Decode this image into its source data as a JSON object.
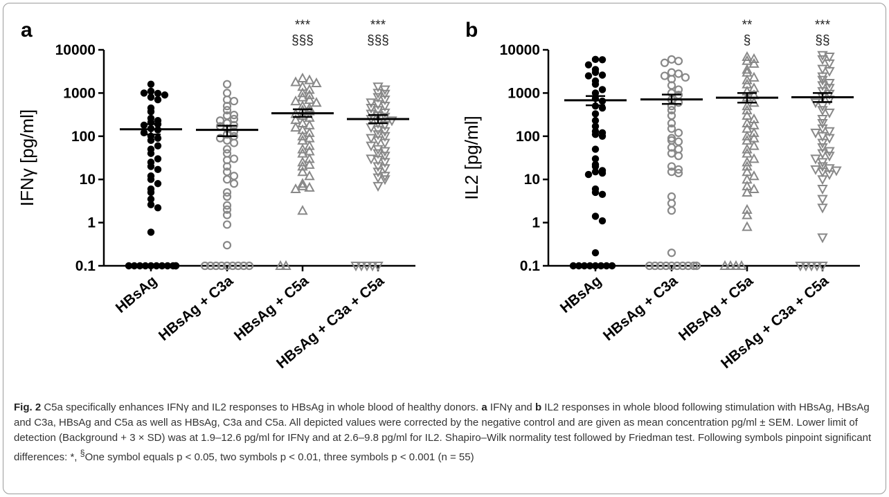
{
  "chart_data": [
    {
      "panel": "a",
      "type": "scatter",
      "ylabel": "IFNγ [pg/ml]",
      "yscale": "log",
      "ylim": [
        0.1,
        10000
      ],
      "yticks": [
        "10000",
        "1000",
        "100",
        "10",
        "1",
        "0.1"
      ],
      "categories": [
        "HBsAg",
        "HBsAg + C3a",
        "HBsAg + C5a",
        "HBsAg + C3a + C5a"
      ],
      "series": [
        {
          "marker": "filled-circle",
          "color": "#000000",
          "mean": 145,
          "sem": [
            110,
            190
          ],
          "values": [
            1600,
            1100,
            980,
            1000,
            900,
            800,
            700,
            450,
            370,
            260,
            230,
            210,
            190,
            180,
            150,
            140,
            120,
            100,
            90,
            80,
            60,
            50,
            40,
            30,
            25,
            20,
            17,
            12,
            10,
            8,
            6,
            5,
            3.5,
            2.6,
            2.2,
            0.6,
            0.1,
            0.1,
            0.1,
            0.1,
            0.1,
            0.1,
            0.1,
            0.1,
            0.1,
            0.1,
            0.1
          ]
        },
        {
          "marker": "open-circle",
          "color": "#888888",
          "mean": 140,
          "sem": [
            100,
            175
          ],
          "values": [
            1600,
            1000,
            700,
            650,
            500,
            400,
            310,
            300,
            250,
            230,
            200,
            180,
            170,
            150,
            130,
            110,
            100,
            90,
            80,
            70,
            50,
            40,
            30,
            28,
            20,
            15,
            12,
            10,
            8,
            5,
            4,
            2.5,
            2,
            1.5,
            0.9,
            0.3,
            0.1,
            0.1,
            0.1,
            0.1,
            0.1,
            0.1,
            0.1,
            0.1,
            0.1
          ]
        },
        {
          "marker": "open-triangle-up",
          "color": "#888888",
          "mean": 340,
          "sem": [
            280,
            420
          ],
          "values": [
            2200,
            2000,
            1800,
            1700,
            1400,
            1200,
            1000,
            900,
            800,
            700,
            650,
            600,
            500,
            450,
            400,
            380,
            330,
            300,
            270,
            240,
            200,
            180,
            160,
            140,
            120,
            100,
            90,
            80,
            60,
            50,
            45,
            40,
            30,
            25,
            22,
            20,
            15,
            12,
            8,
            7,
            6.5,
            6,
            1.9,
            0.1,
            0.1
          ]
        },
        {
          "marker": "open-triangle-down",
          "color": "#888888",
          "mean": 250,
          "sem": [
            200,
            310
          ],
          "values": [
            1400,
            1200,
            1000,
            950,
            800,
            700,
            600,
            550,
            500,
            450,
            400,
            350,
            330,
            300,
            280,
            250,
            230,
            200,
            180,
            160,
            140,
            130,
            110,
            100,
            90,
            80,
            70,
            60,
            50,
            45,
            40,
            35,
            30,
            28,
            25,
            20,
            18,
            15,
            12,
            11,
            10,
            7,
            0.1,
            0.1,
            0.1,
            0.1,
            0.1
          ]
        }
      ],
      "annotations": [
        {
          "category": 2,
          "lines": [
            "***",
            "§§§"
          ]
        },
        {
          "category": 3,
          "lines": [
            "***",
            "§§§"
          ]
        }
      ]
    },
    {
      "panel": "b",
      "type": "scatter",
      "ylabel": "IL2 [pg/ml]",
      "yscale": "log",
      "ylim": [
        0.1,
        10000
      ],
      "yticks": [
        "10000",
        "1000",
        "100",
        "10",
        "1",
        "0.1"
      ],
      "categories": [
        "HBsAg",
        "HBsAg + C3a",
        "HBsAg + C5a",
        "HBsAg + C3a + C5a"
      ],
      "series": [
        {
          "marker": "filled-circle",
          "color": "#000000",
          "mean": 680,
          "sem": [
            520,
            850
          ],
          "values": [
            6000,
            5900,
            4500,
            3500,
            3000,
            2600,
            2500,
            1900,
            1600,
            1200,
            1000,
            750,
            650,
            500,
            450,
            330,
            230,
            170,
            130,
            120,
            110,
            100,
            50,
            30,
            22,
            20,
            16,
            15,
            14,
            13,
            6,
            5,
            4.5,
            1.4,
            1.1,
            0.2,
            0.1,
            0.1,
            0.1,
            0.1,
            0.1,
            0.1,
            0.1,
            0.1
          ]
        },
        {
          "marker": "open-circle",
          "color": "#888888",
          "mean": 710,
          "sem": [
            560,
            920
          ],
          "values": [
            6000,
            5500,
            5000,
            3000,
            2800,
            2500,
            2300,
            2100,
            1500,
            1200,
            1000,
            900,
            700,
            600,
            500,
            400,
            300,
            200,
            150,
            120,
            90,
            80,
            75,
            55,
            50,
            40,
            35,
            20,
            17,
            15,
            14,
            4,
            2.8,
            1.9,
            0.2,
            0.1,
            0.1,
            0.1,
            0.1,
            0.1,
            0.1,
            0.1,
            0.1,
            0.1,
            0.1
          ]
        },
        {
          "marker": "open-triangle-up",
          "color": "#888888",
          "mean": 780,
          "sem": [
            600,
            1000
          ],
          "values": [
            6900,
            6200,
            5600,
            4800,
            3500,
            3000,
            2300,
            2000,
            1600,
            1300,
            1100,
            900,
            800,
            600,
            500,
            400,
            300,
            250,
            200,
            180,
            150,
            120,
            100,
            90,
            80,
            60,
            50,
            40,
            30,
            25,
            20,
            15,
            12,
            10,
            7,
            6,
            5,
            2,
            1.5,
            0.8,
            0.1,
            0.1,
            0.1,
            0.1
          ]
        },
        {
          "marker": "open-triangle-down",
          "color": "#888888",
          "mean": 800,
          "sem": [
            620,
            1000
          ],
          "values": [
            7500,
            6900,
            6000,
            4800,
            3600,
            3200,
            2400,
            2000,
            1700,
            1500,
            1300,
            1100,
            950,
            800,
            700,
            600,
            500,
            400,
            350,
            250,
            200,
            150,
            130,
            120,
            100,
            90,
            70,
            55,
            45,
            40,
            35,
            30,
            25,
            20,
            18,
            17,
            16,
            15,
            13,
            10,
            6,
            3.5,
            2.2,
            0.45,
            0.1,
            0.1,
            0.1,
            0.1,
            0.1
          ]
        }
      ],
      "annotations": [
        {
          "category": 2,
          "lines": [
            "**",
            "§"
          ]
        },
        {
          "category": 3,
          "lines": [
            "***",
            "§§"
          ]
        }
      ]
    }
  ],
  "caption": {
    "label": "Fig. 2",
    "title": "C5a specifically enhances IFNγ and IL2 responses to HBsAg in whole blood of healthy donors.",
    "panel_a": "a",
    "text_a": "IFNγ and",
    "panel_b": "b",
    "text_b": "IL2 responses in whole blood following stimulation with HBsAg, HBsAg and C3a, HBsAg and C5a as well as HBsAg, C3a and C5a. All depicted values were corrected by the negative control and are given as mean concentration pg/ml ± SEM. Lower limit of detection (Background + 3 × SD) was at 1.9–12.6 pg/ml for IFNγ and at 2.6–9.8 pg/ml for IL2. Shapiro–Wilk normality test followed by Friedman test. Following symbols pinpoint significant differences: *, ",
    "sup": "§",
    "text_c": "One symbol equals p < 0.05, two symbols p < 0.01, three symbols p < 0.001 (n = 55)"
  }
}
